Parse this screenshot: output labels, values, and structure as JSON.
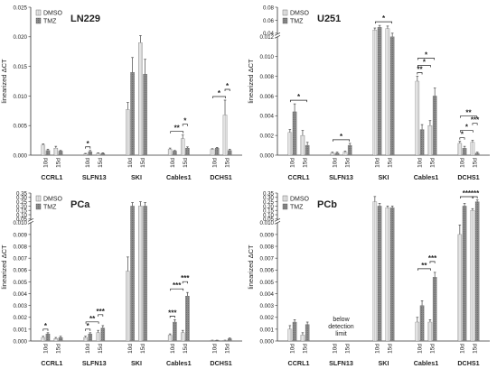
{
  "chart_data": [
    {
      "type": "bar",
      "title": "LN229",
      "ylabel": "linearized ΔCT",
      "legend": [
        "DMSO",
        "TMZ"
      ],
      "genes": [
        "CCRL1",
        "SLFN13",
        "SKI",
        "Cables1",
        "DCHS1"
      ],
      "timepoints": [
        "10d",
        "15d"
      ],
      "ylim": [
        0,
        0.025
      ],
      "yticks": [
        0,
        0.005,
        0.01,
        0.015,
        0.02,
        0.025
      ],
      "ytick_labels": [
        "0.000",
        "0.005",
        "0.010",
        "0.015",
        "0.020",
        "0.025"
      ],
      "series": [
        {
          "name": "DMSO",
          "values": [
            0.0017,
            0.0012,
            0.0002,
            0.0003,
            0.0077,
            0.019,
            0.001,
            0.0028,
            0.001,
            0.0068
          ],
          "errors": [
            0.0002,
            0.0003,
            0.0001,
            0.0001,
            0.0012,
            0.0012,
            0.0002,
            0.0006,
            0.0001,
            0.0025
          ]
        },
        {
          "name": "TMZ",
          "values": [
            0.0008,
            0.0007,
            0.0006,
            0.0003,
            0.014,
            0.0137,
            0.0007,
            0.0012,
            0.0012,
            0.0008
          ],
          "errors": [
            0.0002,
            0.0001,
            0.0002,
            0.0001,
            0.0025,
            0.0025,
            0.0001,
            0.0002,
            0.0001,
            0.0002
          ]
        }
      ],
      "significance": [
        {
          "gene": 1,
          "type": "within",
          "time": 0,
          "label": "*"
        },
        {
          "gene": 3,
          "type": "across",
          "label": "**"
        },
        {
          "gene": 3,
          "type": "within",
          "time": 1,
          "label": "*"
        },
        {
          "gene": 4,
          "type": "across",
          "label": "*"
        },
        {
          "gene": 4,
          "type": "within",
          "time": 1,
          "label": "*"
        }
      ]
    },
    {
      "type": "bar",
      "title": "U251",
      "ylabel": "linearized ΔCT",
      "legend": [
        "DMSO",
        "TMZ"
      ],
      "genes": [
        "CCRL1",
        "SLFN13",
        "SKI",
        "Cables1",
        "DCHS1"
      ],
      "timepoints": [
        "10d",
        "15d"
      ],
      "ylim": [
        0,
        0.08
      ],
      "yticks": [
        0,
        0.002,
        0.004,
        0.006,
        0.008,
        0.01,
        0.012,
        0.04,
        0.06,
        0.08
      ],
      "ytick_labels": [
        "0.000",
        "0.002",
        "0.004",
        "0.006",
        "0.008",
        "0.010",
        "0.012",
        "0.04",
        "0.06",
        "0.08"
      ],
      "axis_break": [
        0.012,
        0.04
      ],
      "series": [
        {
          "name": "DMSO",
          "values": [
            0.0023,
            0.002,
            0.0002,
            0.0003,
            0.045,
            0.047,
            0.0075,
            0.003,
            0.0012,
            0.0013
          ],
          "errors": [
            0.0003,
            0.0005,
            0.0001,
            0.0001,
            0.003,
            0.004,
            0.0005,
            0.0005,
            0.0002,
            0.0002
          ]
        },
        {
          "name": "TMZ",
          "values": [
            0.0044,
            0.001,
            0.0002,
            0.001,
            0.049,
            0.012,
            0.0026,
            0.006,
            0.0007,
            0.0002
          ],
          "errors": [
            0.0008,
            0.0003,
            0.0001,
            0.0002,
            0.003,
            0.006,
            0.0005,
            0.0008,
            0.0002,
            0.0001
          ]
        }
      ],
      "significance": [
        {
          "gene": 0,
          "type": "span",
          "label": "*"
        },
        {
          "gene": 1,
          "type": "span",
          "label": "*"
        },
        {
          "gene": 2,
          "type": "span",
          "label": "*"
        },
        {
          "gene": 3,
          "type": "within",
          "time": 0,
          "label": "**"
        },
        {
          "gene": 3,
          "type": "across",
          "label": "*"
        },
        {
          "gene": 3,
          "type": "span",
          "label": "*"
        },
        {
          "gene": 4,
          "type": "within",
          "time": 0,
          "label": "*"
        },
        {
          "gene": 4,
          "type": "across",
          "label": "*"
        },
        {
          "gene": 4,
          "type": "within",
          "time": 1,
          "label": "***"
        },
        {
          "gene": 4,
          "type": "span",
          "label": "**"
        }
      ]
    },
    {
      "type": "bar",
      "title": "PCa",
      "ylabel": "linearized ΔCT",
      "legend": [
        "DMSO",
        "TMZ"
      ],
      "genes": [
        "CCRL1",
        "SLFN13",
        "SKI",
        "Cables1",
        "DCHS1"
      ],
      "timepoints": [
        "10d",
        "15d"
      ],
      "ylim": [
        0,
        0.35
      ],
      "yticks": [
        0,
        0.001,
        0.002,
        0.003,
        0.004,
        0.005,
        0.006,
        0.007,
        0.008,
        0.009,
        0.01,
        0.05,
        0.1,
        0.15,
        0.2,
        0.25,
        0.3,
        0.35
      ],
      "ytick_labels": [
        "0.000",
        "0.001",
        "0.002",
        "0.003",
        "0.004",
        "0.005",
        "0.006",
        "0.007",
        "0.008",
        "0.009",
        "0.010",
        "0.05",
        "0.10",
        "0.15",
        "0.20",
        "0.25",
        "0.30",
        "0.35"
      ],
      "axis_break": [
        0.01,
        0.05
      ],
      "series": [
        {
          "name": "DMSO",
          "values": [
            0.0003,
            0.0002,
            0.0003,
            0.0007,
            0.0059,
            0.2,
            0.0005,
            0.0007,
            5e-05,
            5e-05
          ],
          "errors": [
            0.0001,
            0.0001,
            0.0001,
            0.0002,
            0.0012,
            0.05,
            0.0001,
            0.0002,
            2e-05,
            2e-05
          ]
        },
        {
          "name": "TMZ",
          "values": [
            0.0006,
            0.0003,
            0.0006,
            0.0011,
            0.2,
            0.2,
            0.0016,
            0.0038,
            5e-05,
            0.0002
          ],
          "errors": [
            0.0001,
            0.0001,
            0.0001,
            0.0002,
            0.04,
            0.04,
            0.0002,
            0.0003,
            2e-05,
            5e-05
          ]
        }
      ],
      "significance": [
        {
          "gene": 0,
          "type": "within",
          "time": 0,
          "label": "*"
        },
        {
          "gene": 1,
          "type": "within",
          "time": 0,
          "label": "*"
        },
        {
          "gene": 1,
          "type": "across",
          "label": "**"
        },
        {
          "gene": 1,
          "type": "within",
          "time": 1,
          "label": "***"
        },
        {
          "gene": 3,
          "type": "within",
          "time": 0,
          "label": "***"
        },
        {
          "gene": 3,
          "type": "across",
          "label": "***"
        },
        {
          "gene": 3,
          "type": "within",
          "time": 1,
          "label": "***"
        }
      ]
    },
    {
      "type": "bar",
      "title": "PCb",
      "ylabel": "linearized ΔCT",
      "legend": [
        "DMSO",
        "TMZ"
      ],
      "genes": [
        "CCRL1",
        "SLFN13",
        "SKI",
        "Cables1",
        "DCHS1"
      ],
      "timepoints": [
        "10d",
        "15d"
      ],
      "ylim": [
        0,
        0.35
      ],
      "yticks": [
        0,
        0.001,
        0.002,
        0.003,
        0.004,
        0.005,
        0.006,
        0.007,
        0.008,
        0.009,
        0.01,
        0.05,
        0.1,
        0.15,
        0.2,
        0.25,
        0.3,
        0.35
      ],
      "ytick_labels": [
        "0.000",
        "0.001",
        "0.002",
        "0.003",
        "0.004",
        "0.005",
        "0.006",
        "0.007",
        "0.008",
        "0.009",
        "0.010",
        "0.05",
        "0.10",
        "0.15",
        "0.20",
        "0.25",
        "0.30",
        "0.35"
      ],
      "axis_break": [
        0.01,
        0.05
      ],
      "annotation": "below detection limit",
      "annotation_gene": 1,
      "series": [
        {
          "name": "DMSO",
          "values": [
            0.001,
            0.0005,
            null,
            null,
            0.25,
            0.18,
            0.0016,
            0.0016,
            0.009,
            0.15
          ],
          "errors": [
            0.0003,
            0.0002,
            null,
            null,
            0.06,
            0.02,
            0.0004,
            0.0002,
            0.0008,
            0.02
          ]
        },
        {
          "name": "TMZ",
          "values": [
            0.0016,
            0.0014,
            null,
            null,
            0.2,
            0.18,
            0.003,
            0.0054,
            0.2,
            0.25
          ],
          "errors": [
            0.0002,
            0.0002,
            null,
            null,
            0.03,
            0.02,
            0.0004,
            0.0004,
            0.03,
            0.02
          ]
        }
      ],
      "significance": [
        {
          "gene": 3,
          "type": "across",
          "label": "**"
        },
        {
          "gene": 3,
          "type": "within",
          "time": 1,
          "label": "***"
        },
        {
          "gene": 4,
          "type": "across",
          "label": "***"
        },
        {
          "gene": 4,
          "type": "within",
          "time": 1,
          "label": "***"
        }
      ]
    }
  ],
  "colors": {
    "dmso": "#e3e3e3",
    "tmz": "#8a8a8a"
  }
}
